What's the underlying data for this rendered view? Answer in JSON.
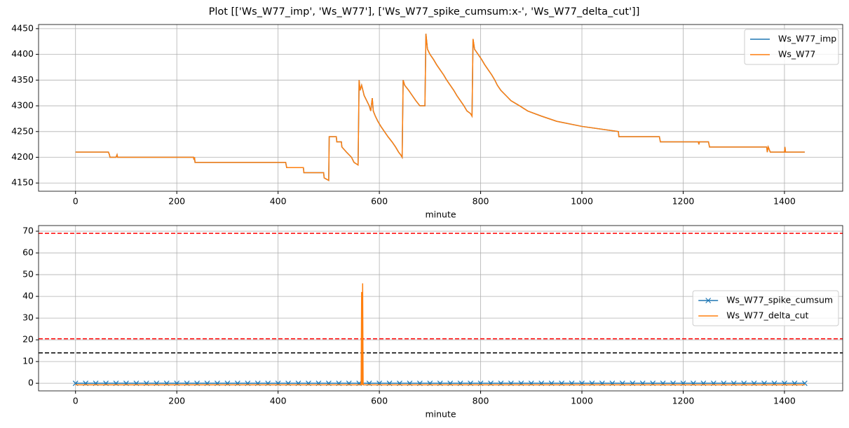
{
  "title": "Plot [['Ws_W77_imp', 'Ws_W77'], ['Ws_W77_spike_cumsum:x-', 'Ws_W77_delta_cut']]",
  "chart_data": [
    {
      "type": "line",
      "xlabel": "minute",
      "grid": true,
      "legend": "upper right",
      "xlim": [
        -73,
        1515
      ],
      "ylim": [
        4134,
        4458
      ],
      "xticks": [
        0,
        200,
        400,
        600,
        800,
        1000,
        1200,
        1400
      ],
      "yticks": [
        4150,
        4200,
        4250,
        4300,
        4350,
        4400,
        4450
      ],
      "x": [
        0,
        65,
        67,
        68,
        80,
        82,
        83,
        233,
        234,
        235,
        236,
        415,
        416,
        417,
        450,
        451,
        490,
        491,
        500,
        501,
        515,
        516,
        525,
        526,
        535,
        545,
        550,
        558,
        560,
        562,
        565,
        570,
        575,
        580,
        583,
        586,
        588,
        592,
        597,
        603,
        610,
        617,
        625,
        632,
        638,
        642,
        645,
        647,
        650,
        658,
        665,
        672,
        680,
        690,
        692,
        695,
        700,
        707,
        713,
        720,
        727,
        733,
        740,
        747,
        753,
        760,
        767,
        773,
        780,
        783,
        785,
        788,
        795,
        802,
        808,
        815,
        822,
        828,
        833,
        840,
        850,
        860,
        877,
        893,
        920,
        950,
        1000,
        1072,
        1073,
        1153,
        1155,
        1230,
        1231,
        1232,
        1250,
        1252,
        1365,
        1366,
        1368,
        1372,
        1400,
        1401,
        1402,
        1440
      ],
      "series": [
        {
          "name": "Ws_W77_imp",
          "color": "#1f77b4",
          "values": [
            4210,
            4210,
            4205,
            4200,
            4200,
            4205,
            4200,
            4200,
            4195,
            4200,
            4190,
            4190,
            4185,
            4180,
            4180,
            4170,
            4170,
            4160,
            4155,
            4240,
            4240,
            4230,
            4230,
            4220,
            4210,
            4200,
            4190,
            4185,
            4350,
            4330,
            4340,
            4320,
            4310,
            4300,
            4290,
            4315,
            4290,
            4280,
            4270,
            4260,
            4250,
            4240,
            4230,
            4220,
            4210,
            4205,
            4200,
            4350,
            4340,
            4330,
            4320,
            4310,
            4300,
            4300,
            4440,
            4410,
            4400,
            4390,
            4380,
            4370,
            4360,
            4350,
            4340,
            4330,
            4320,
            4310,
            4300,
            4290,
            4285,
            4280,
            4430,
            4410,
            4400,
            4390,
            4380,
            4370,
            4360,
            4350,
            4340,
            4330,
            4320,
            4310,
            4300,
            4290,
            4280,
            4270,
            4260,
            4250,
            4240,
            4240,
            4230,
            4230,
            4225,
            4230,
            4230,
            4220,
            4220,
            4210,
            4220,
            4210,
            4210,
            4220,
            4210,
            4210
          ]
        },
        {
          "name": "Ws_W77",
          "color": "#ff7f0e",
          "values": [
            4210,
            4210,
            4205,
            4200,
            4200,
            4205,
            4200,
            4200,
            4195,
            4200,
            4190,
            4190,
            4185,
            4180,
            4180,
            4170,
            4170,
            4160,
            4155,
            4240,
            4240,
            4230,
            4230,
            4220,
            4210,
            4200,
            4190,
            4185,
            4350,
            4330,
            4340,
            4320,
            4310,
            4300,
            4290,
            4315,
            4290,
            4280,
            4270,
            4260,
            4250,
            4240,
            4230,
            4220,
            4210,
            4205,
            4200,
            4350,
            4340,
            4330,
            4320,
            4310,
            4300,
            4300,
            4440,
            4410,
            4400,
            4390,
            4380,
            4370,
            4360,
            4350,
            4340,
            4330,
            4320,
            4310,
            4300,
            4290,
            4285,
            4280,
            4430,
            4410,
            4400,
            4390,
            4380,
            4370,
            4360,
            4350,
            4340,
            4330,
            4320,
            4310,
            4300,
            4290,
            4280,
            4270,
            4260,
            4250,
            4240,
            4240,
            4230,
            4230,
            4225,
            4230,
            4230,
            4220,
            4220,
            4210,
            4220,
            4210,
            4210,
            4220,
            4210,
            4210
          ]
        }
      ]
    },
    {
      "type": "line",
      "xlabel": "minute",
      "grid": true,
      "legend": "center right",
      "xlim": [
        -73,
        1515
      ],
      "ylim": [
        -3.5,
        72.6
      ],
      "xticks": [
        0,
        200,
        400,
        600,
        800,
        1000,
        1200,
        1400
      ],
      "yticks": [
        0,
        10,
        20,
        30,
        40,
        50,
        60,
        70
      ],
      "hlines": [
        {
          "value": 69,
          "color": "red"
        },
        {
          "value": 20.5,
          "color": "red"
        },
        {
          "value": 14,
          "color": "black"
        }
      ],
      "series": [
        {
          "name": "Ws_W77_spike_cumsum",
          "color": "#1f77b4",
          "marker": "x",
          "x": [
            0,
            20,
            40,
            60,
            80,
            100,
            120,
            140,
            160,
            180,
            200,
            220,
            240,
            260,
            280,
            300,
            320,
            340,
            360,
            380,
            400,
            420,
            440,
            460,
            480,
            500,
            520,
            540,
            560,
            580,
            600,
            620,
            640,
            660,
            680,
            700,
            720,
            740,
            760,
            780,
            800,
            820,
            840,
            860,
            880,
            900,
            920,
            940,
            960,
            980,
            1000,
            1020,
            1040,
            1060,
            1080,
            1100,
            1120,
            1140,
            1160,
            1180,
            1200,
            1220,
            1240,
            1260,
            1280,
            1300,
            1320,
            1340,
            1360,
            1380,
            1400,
            1420,
            1440
          ],
          "values": [
            0,
            0,
            0,
            0,
            0,
            0,
            0,
            0,
            0,
            0,
            0,
            0,
            0,
            0,
            0,
            0,
            0,
            0,
            0,
            0,
            0,
            0,
            0,
            0,
            0,
            0,
            0,
            0,
            0,
            0,
            0,
            0,
            0,
            0,
            0,
            0,
            0,
            0,
            0,
            0,
            0,
            0,
            0,
            0,
            0,
            0,
            0,
            0,
            0,
            0,
            0,
            0,
            0,
            0,
            0,
            0,
            0,
            0,
            0,
            0,
            0,
            0,
            0,
            0,
            0,
            0,
            0,
            0,
            0,
            0,
            0,
            0,
            0
          ]
        },
        {
          "name": "Ws_W77_delta_cut",
          "color": "#ff7f0e",
          "x": [
            0,
            564,
            565,
            566,
            567,
            568,
            1440
          ],
          "values": [
            -0.7,
            -0.7,
            42,
            -0.7,
            46,
            -0.7,
            -0.7
          ]
        }
      ]
    }
  ]
}
